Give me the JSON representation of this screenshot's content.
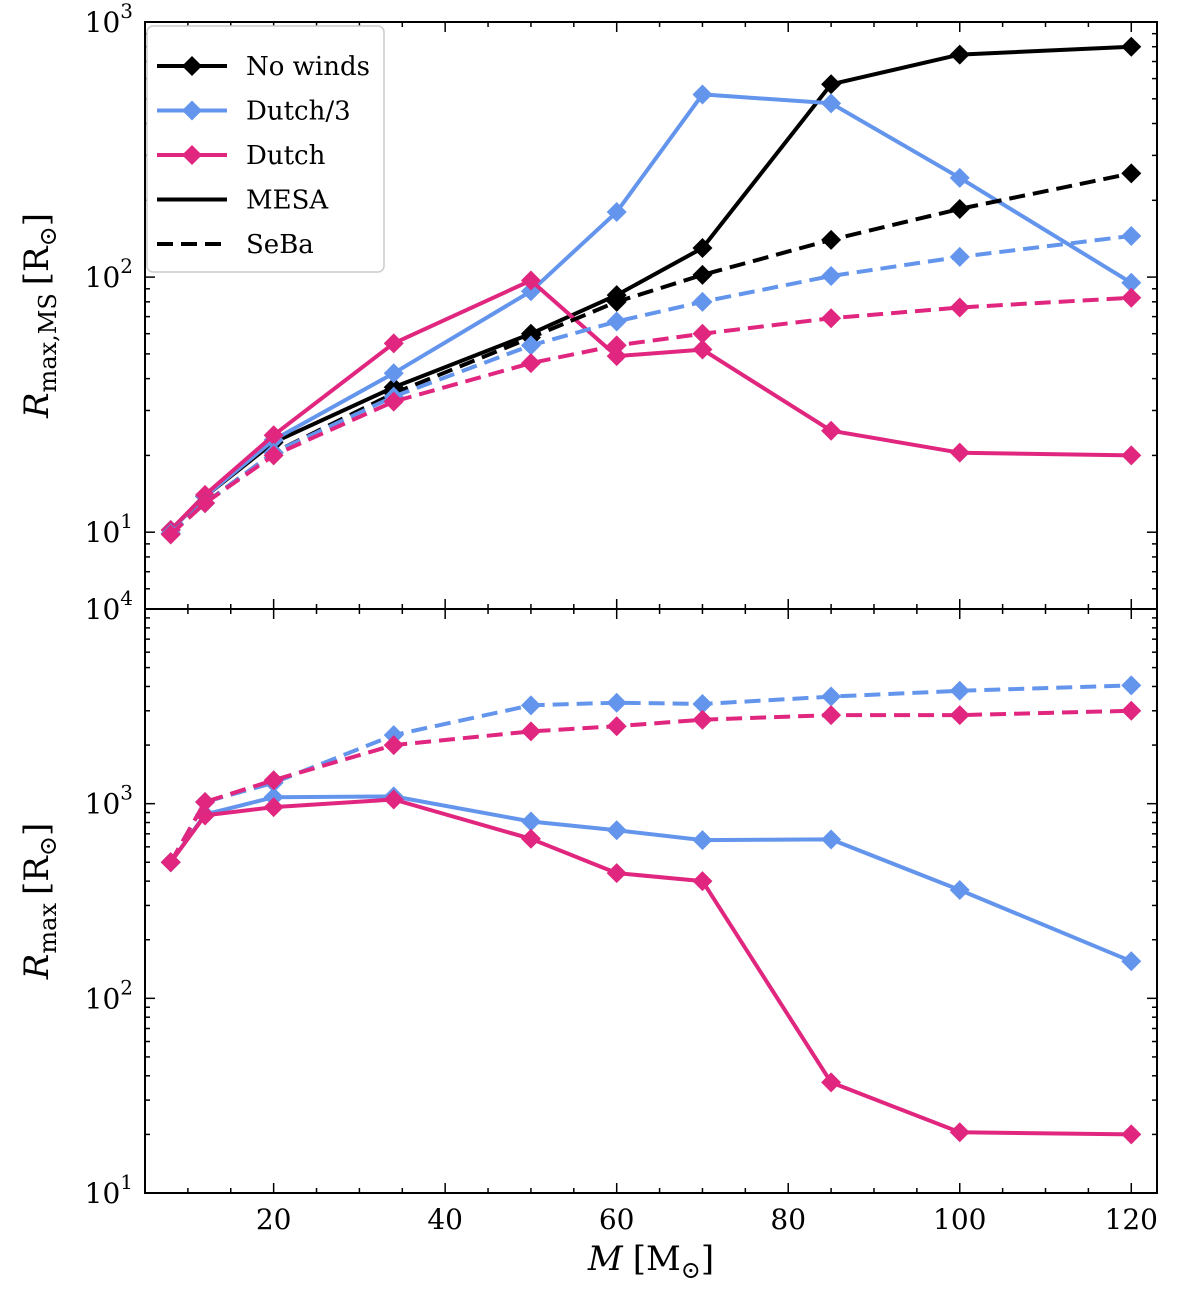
{
  "chart_data": [
    {
      "type": "line",
      "panel": "top",
      "ylabel": "R_max,MS [R_⊙]",
      "ylabel_parts": {
        "main": "R",
        "sub": "max,MS",
        "unit": "[R",
        "unit_sub": "⊙",
        "unit_close": "]"
      },
      "yscale": "log",
      "ylim": [
        5,
        1000
      ],
      "yticks": [
        {
          "value": 10,
          "label": "10",
          "exp": "1"
        },
        {
          "value": 100,
          "label": "10",
          "exp": "2"
        },
        {
          "value": 1000,
          "label": "10",
          "exp": "3"
        }
      ],
      "xlim": [
        5,
        123
      ],
      "legend": {
        "placement": "top-left",
        "entries": [
          {
            "label": "No winds",
            "color": "#000000",
            "style": "marker"
          },
          {
            "label": "Dutch/3",
            "color": "#6495ED",
            "style": "marker"
          },
          {
            "label": "Dutch",
            "color": "#E0267E",
            "style": "marker"
          },
          {
            "label": "MESA",
            "color": "#000000",
            "style": "solid"
          },
          {
            "label": "SeBa",
            "color": "#000000",
            "style": "dashed"
          }
        ]
      },
      "series": [
        {
          "name": "No winds",
          "code": "MESA",
          "color": "#000000",
          "dash": false,
          "x": [
            8,
            12,
            20,
            34,
            50,
            60,
            70,
            85,
            100,
            120
          ],
          "y": [
            10.2,
            13.8,
            22.5,
            37,
            60,
            85,
            130,
            570,
            745,
            800
          ]
        },
        {
          "name": "Dutch/3",
          "code": "MESA",
          "color": "#6495ED",
          "dash": false,
          "x": [
            8,
            12,
            20,
            34,
            50,
            60,
            70,
            85,
            100,
            120
          ],
          "y": [
            10.2,
            13.8,
            23,
            42,
            88,
            180,
            520,
            480,
            245,
            95
          ]
        },
        {
          "name": "Dutch",
          "code": "MESA",
          "color": "#E0267E",
          "dash": false,
          "x": [
            8,
            12,
            20,
            34,
            50,
            60,
            70,
            85,
            100,
            120
          ],
          "y": [
            10.2,
            14,
            24,
            55,
            97,
            49,
            52,
            25,
            20.5,
            20
          ]
        },
        {
          "name": "No winds",
          "code": "SeBa",
          "color": "#000000",
          "dash": true,
          "x": [
            8,
            12,
            20,
            34,
            50,
            60,
            70,
            85,
            100,
            120
          ],
          "y": [
            9.9,
            13,
            20.5,
            35,
            58,
            80,
            102,
            140,
            185,
            255
          ]
        },
        {
          "name": "Dutch/3",
          "code": "SeBa",
          "color": "#6495ED",
          "dash": true,
          "x": [
            8,
            12,
            20,
            34,
            50,
            60,
            70,
            85,
            100,
            120
          ],
          "y": [
            9.9,
            13,
            20.5,
            34,
            54,
            67,
            80,
            101,
            120,
            145
          ]
        },
        {
          "name": "Dutch",
          "code": "SeBa",
          "color": "#E0267E",
          "dash": true,
          "x": [
            8,
            12,
            20,
            34,
            50,
            60,
            70,
            85,
            100,
            120
          ],
          "y": [
            9.8,
            13,
            20,
            32.5,
            46,
            54,
            60,
            69,
            76,
            83
          ]
        }
      ]
    },
    {
      "type": "line",
      "panel": "bottom",
      "ylabel": "R_max [R_⊙]",
      "ylabel_parts": {
        "main": "R",
        "sub": "max",
        "unit": "[R",
        "unit_sub": "⊙",
        "unit_close": "]"
      },
      "xlabel": "M [M_⊙]",
      "xlabel_parts": {
        "main": "M",
        "unit": "[M",
        "unit_sub": "⊙",
        "unit_close": "]"
      },
      "yscale": "log",
      "ylim": [
        10,
        10000
      ],
      "yticks": [
        {
          "value": 10,
          "label": "10",
          "exp": "1"
        },
        {
          "value": 100,
          "label": "10",
          "exp": "2"
        },
        {
          "value": 1000,
          "label": "10",
          "exp": "3"
        },
        {
          "value": 10000,
          "label": "10",
          "exp": "4"
        }
      ],
      "xlim": [
        5,
        123
      ],
      "xticks": [
        20,
        40,
        60,
        80,
        100,
        120
      ],
      "series": [
        {
          "name": "Dutch/3",
          "code": "MESA",
          "color": "#6495ED",
          "dash": false,
          "x": [
            8,
            12,
            20,
            34,
            50,
            60,
            70,
            85,
            100,
            120
          ],
          "y": [
            500,
            880,
            1080,
            1090,
            810,
            730,
            650,
            655,
            360,
            155
          ]
        },
        {
          "name": "Dutch",
          "code": "MESA",
          "color": "#E0267E",
          "dash": false,
          "x": [
            8,
            12,
            20,
            34,
            50,
            60,
            70,
            85,
            100,
            120
          ],
          "y": [
            500,
            870,
            960,
            1050,
            660,
            440,
            400,
            37,
            20.5,
            20
          ]
        },
        {
          "name": "Dutch/3",
          "code": "SeBa",
          "color": "#6495ED",
          "dash": true,
          "x": [
            8,
            12,
            20,
            34,
            50,
            60,
            70,
            85,
            100,
            120
          ],
          "y": [
            500,
            1020,
            1280,
            2250,
            3200,
            3300,
            3250,
            3550,
            3800,
            4050
          ]
        },
        {
          "name": "Dutch",
          "code": "SeBa",
          "color": "#E0267E",
          "dash": true,
          "x": [
            8,
            12,
            20,
            34,
            50,
            60,
            70,
            85,
            100,
            120
          ],
          "y": [
            500,
            1020,
            1320,
            2000,
            2350,
            2500,
            2700,
            2850,
            2850,
            3000
          ]
        }
      ]
    }
  ]
}
